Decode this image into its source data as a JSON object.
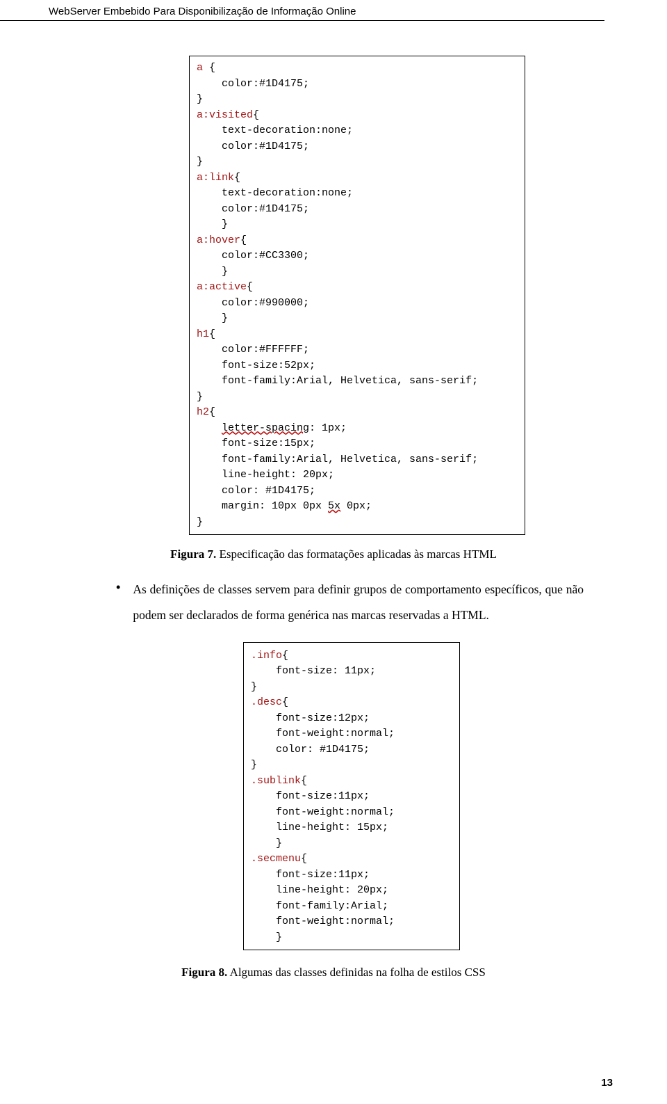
{
  "header": "WebServer Embebido Para Disponibilização de Informação Online",
  "code1": {
    "lines": [
      "a {",
      "    color:#1D4175;",
      "}",
      "a:visited{",
      "    text-decoration:none;",
      "    color:#1D4175;",
      "}",
      "a:link{",
      "    text-decoration:none;",
      "    color:#1D4175;",
      "    }",
      "a:hover{",
      "    color:#CC3300;",
      "    }",
      "a:active{",
      "    color:#990000;",
      "    }",
      "h1{",
      "    color:#FFFFFF;",
      "    font-size:52px;",
      "    font-family:Arial, Helvetica, sans-serif;",
      "}",
      "h2{",
      "    letter-spacing: 1px;",
      "    font-size:15px;",
      "    font-family:Arial, Helvetica, sans-serif;",
      "    line-height: 20px;",
      "    color: #1D4175;",
      "    margin: 10px 0px 5x 0px;",
      "}"
    ],
    "squiggle_tokens": [
      "letter-spacing",
      "5x"
    ]
  },
  "caption1_bold": "Figura 7.",
  "caption1_rest": " Especificação das formatações aplicadas às marcas HTML",
  "bullet_text": "As definições de classes servem para definir grupos de comportamento específicos, que não podem ser declarados de forma genérica nas marcas reservadas a HTML.",
  "code2": {
    "lines": [
      ".info{",
      "    font-size: 11px;",
      "}",
      ".desc{",
      "    font-size:12px;",
      "    font-weight:normal;",
      "    color: #1D4175;",
      "}",
      ".sublink{",
      "    font-size:11px;",
      "    font-weight:normal;",
      "    line-height: 15px;",
      "    }",
      ".secmenu{",
      "    font-size:11px;",
      "    line-height: 20px;",
      "    font-family:Arial;",
      "    font-weight:normal;",
      "    }"
    ],
    "red_prefixed": true
  },
  "caption2_bold": "Figura 8.",
  "caption2_rest": " Algumas das classes definidas na folha de estilos CSS",
  "page_number": "13",
  "colors": {
    "selector_red": "#a31515",
    "text_black": "#000000",
    "squiggle": "#c00000"
  }
}
